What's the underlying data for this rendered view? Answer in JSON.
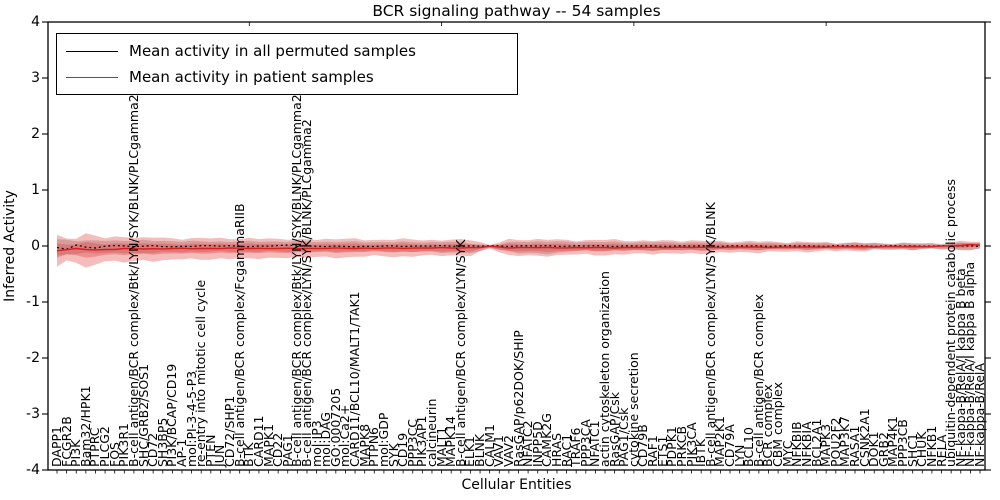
{
  "chart_data": {
    "type": "line",
    "title": "BCR signaling pathway -- 54 samples",
    "xlabel": "Cellular Entities",
    "ylabel": "Inferred Activity",
    "ylim": [
      -4,
      4
    ],
    "yticks": [
      "4",
      "3",
      "2",
      "1",
      "0",
      "-1",
      "-2",
      "-3",
      "-4"
    ],
    "n_samples": 54,
    "grid": false,
    "legend_position": "upper left",
    "categories": [
      "DAPP1",
      "FCGR2B",
      "PI3K",
      "Bam32/HPK1",
      "PTPRC",
      "PLCG2",
      "FOS",
      "PIK3R1",
      "B-cell antigen/BCR complex/Btk/LYN/SYK/BLNK/PLCgamma2",
      "SHC/GRB2/SOS1",
      "CD72",
      "SH3BP5",
      "PI3K/BCAP/CD19",
      "AP-1",
      "mol:PI-3-4-5-P3",
      "re-entry into mitotic cell cycle",
      "PTEN",
      "JUN",
      "CD72/SHP1",
      "B-cell antigen/BCR complex/FcgammaRIIB",
      "BTK",
      "CARD11",
      "MAPK1",
      "CD22",
      "PAG1",
      "B-cell antigen/BCR complex/Btk/LYN/SYK/BLNK/PLCgamma2",
      "B-cell antigen/BCR complex/LYN/SYK/BLNK/PLCgamma2",
      "mol:IP3",
      "mol:DAG",
      "GO:0007205",
      "mol:Ca2+",
      "CARD11/BCL10/MALT1/TAK1",
      "MAPK8",
      "PTPN6",
      "mol:GDP",
      "SYK",
      "CD19",
      "PPP3CC",
      "PIK3AP1",
      "calcineurin",
      "MALT1",
      "MAPK14",
      "B-cell antigen/BCR complex/LYN/SYK",
      "ELK1",
      "BLNK",
      "CALM1",
      "VAV1",
      "VAV2",
      "RasGAP/p62DOK/SHIP",
      "NFATC2",
      "INPP5D",
      "CAMK2G",
      "HRAS",
      "RAC1",
      "TRAF6",
      "PPP3CA",
      "NFATC1",
      "actin cytoskeleton organization",
      "RasGAP/Csk",
      "PAG1/Csk",
      "cytokine secretion",
      "CD79B",
      "RAF1",
      "ETS1",
      "PDPK1",
      "PRKCB",
      "PIK3CA",
      "IBTK",
      "B-cell antigen/BCR complex/LYN/SYK/BLNK",
      "MAP2K1",
      "CD79A",
      "LYN",
      "BCL10",
      "B-cell antigen/BCR complex",
      "BCR complex",
      "CBM complex",
      "MYC",
      "NFKBIB",
      "NFKBIA",
      "BCL2A1",
      "MAPK3",
      "POU2F2",
      "MAP3K7",
      "RASA1",
      "CSNK2A1",
      "DOK1",
      "GRB2",
      "MAP4K1",
      "PPP3CB",
      "SHC1",
      "CHUK",
      "NFKB1",
      "RELA",
      "ubiquitin-dependent protein catabolic process",
      "NF-kappa-B/RelA/I kappa B beta",
      "NF-kappa-B/RelA/I kappa B alpha",
      "NF-kappa-B/RelA"
    ],
    "series": [
      {
        "name": "Mean activity in all permuted samples",
        "color": "#000000",
        "style": "dashed",
        "points": [
          [
            0,
            -0.02
          ],
          [
            0.01,
            -0.06
          ],
          [
            0.02,
            0.01
          ],
          [
            0.04,
            -0.04
          ],
          [
            0.06,
            0.02
          ],
          [
            0.08,
            -0.02
          ],
          [
            0.1,
            0.01
          ],
          [
            0.13,
            -0.02
          ],
          [
            0.16,
            0.01
          ],
          [
            0.2,
            -0.01
          ],
          [
            0.25,
            0.01
          ],
          [
            0.3,
            -0.01
          ],
          [
            0.4,
            0.0
          ],
          [
            0.47,
            0.0
          ],
          [
            0.55,
            0.0
          ],
          [
            0.65,
            0.0
          ],
          [
            0.75,
            0.0
          ],
          [
            0.85,
            0.0
          ],
          [
            0.95,
            0.0
          ],
          [
            1,
            0.0
          ]
        ]
      },
      {
        "name": "Mean activity in patient samples",
        "color": "#d62020",
        "style": "solid",
        "points": [
          [
            0,
            -0.08
          ],
          [
            0.02,
            -0.05
          ],
          [
            0.04,
            -0.07
          ],
          [
            0.07,
            -0.05
          ],
          [
            0.1,
            -0.05
          ],
          [
            0.15,
            -0.045
          ],
          [
            0.2,
            -0.04
          ],
          [
            0.25,
            -0.045
          ],
          [
            0.3,
            -0.04
          ],
          [
            0.35,
            -0.04
          ],
          [
            0.4,
            -0.035
          ],
          [
            0.455,
            -0.03
          ],
          [
            0.47,
            -0.005
          ],
          [
            0.485,
            -0.03
          ],
          [
            0.55,
            -0.03
          ],
          [
            0.6,
            -0.03
          ],
          [
            0.65,
            -0.025
          ],
          [
            0.7,
            -0.025
          ],
          [
            0.75,
            -0.02
          ],
          [
            0.8,
            -0.02
          ],
          [
            0.85,
            -0.015
          ],
          [
            0.9,
            -0.012
          ],
          [
            0.95,
            -0.01
          ],
          [
            0.98,
            0.01
          ],
          [
            0.995,
            0.035
          ],
          [
            1,
            0.02
          ]
        ]
      }
    ],
    "bands": [
      {
        "name": "permuted-samples-std-band",
        "color": "#999999",
        "opacity": 0.45,
        "upper": [
          [
            0,
            0.12
          ],
          [
            0.03,
            0.09
          ],
          [
            0.08,
            0.1
          ],
          [
            0.15,
            0.08
          ],
          [
            0.25,
            0.08
          ],
          [
            0.35,
            0.07
          ],
          [
            0.44,
            0.07
          ],
          [
            0.468,
            0.01
          ],
          [
            0.5,
            0.08
          ],
          [
            0.6,
            0.07
          ],
          [
            0.7,
            0.06
          ],
          [
            0.8,
            0.05
          ],
          [
            0.9,
            0.05
          ],
          [
            1,
            0.05
          ]
        ],
        "lower": [
          [
            0,
            -0.18
          ],
          [
            0.03,
            -0.12
          ],
          [
            0.08,
            -0.13
          ],
          [
            0.15,
            -0.1
          ],
          [
            0.25,
            -0.1
          ],
          [
            0.35,
            -0.09
          ],
          [
            0.44,
            -0.12
          ],
          [
            0.455,
            -0.14
          ],
          [
            0.468,
            -0.02
          ],
          [
            0.5,
            -0.13
          ],
          [
            0.53,
            -0.14
          ],
          [
            0.56,
            -0.09
          ],
          [
            0.6,
            -0.08
          ],
          [
            0.7,
            -0.07
          ],
          [
            0.8,
            -0.06
          ],
          [
            0.9,
            -0.06
          ],
          [
            1,
            -0.06
          ]
        ]
      },
      {
        "name": "patient-samples-std-band",
        "color": "#e03030",
        "opacity": 0.32,
        "upper": [
          [
            0,
            0.2
          ],
          [
            0.015,
            0.1
          ],
          [
            0.03,
            0.22
          ],
          [
            0.05,
            0.14
          ],
          [
            0.07,
            0.18
          ],
          [
            0.09,
            0.13
          ],
          [
            0.11,
            0.16
          ],
          [
            0.14,
            0.12
          ],
          [
            0.17,
            0.15
          ],
          [
            0.2,
            0.12
          ],
          [
            0.23,
            0.14
          ],
          [
            0.26,
            0.11
          ],
          [
            0.3,
            0.13
          ],
          [
            0.34,
            0.11
          ],
          [
            0.38,
            0.12
          ],
          [
            0.42,
            0.1
          ],
          [
            0.45,
            0.12
          ],
          [
            0.468,
            0.015
          ],
          [
            0.49,
            0.11
          ],
          [
            0.52,
            0.12
          ],
          [
            0.56,
            0.1
          ],
          [
            0.6,
            0.11
          ],
          [
            0.64,
            0.09
          ],
          [
            0.68,
            0.1
          ],
          [
            0.72,
            0.08
          ],
          [
            0.76,
            0.08
          ],
          [
            0.8,
            0.07
          ],
          [
            0.84,
            0.06
          ],
          [
            0.88,
            0.05
          ],
          [
            0.92,
            0.04
          ],
          [
            0.96,
            0.04
          ],
          [
            0.985,
            0.09
          ],
          [
            1,
            0.07
          ]
        ],
        "lower": [
          [
            0,
            -0.38
          ],
          [
            0.015,
            -0.22
          ],
          [
            0.03,
            -0.4
          ],
          [
            0.05,
            -0.26
          ],
          [
            0.07,
            -0.3
          ],
          [
            0.09,
            -0.24
          ],
          [
            0.11,
            -0.28
          ],
          [
            0.14,
            -0.22
          ],
          [
            0.17,
            -0.25
          ],
          [
            0.2,
            -0.21
          ],
          [
            0.23,
            -0.23
          ],
          [
            0.26,
            -0.19
          ],
          [
            0.3,
            -0.21
          ],
          [
            0.34,
            -0.18
          ],
          [
            0.38,
            -0.19
          ],
          [
            0.42,
            -0.16
          ],
          [
            0.45,
            -0.18
          ],
          [
            0.468,
            -0.03
          ],
          [
            0.49,
            -0.17
          ],
          [
            0.52,
            -0.18
          ],
          [
            0.56,
            -0.15
          ],
          [
            0.6,
            -0.16
          ],
          [
            0.64,
            -0.13
          ],
          [
            0.68,
            -0.14
          ],
          [
            0.72,
            -0.12
          ],
          [
            0.76,
            -0.11
          ],
          [
            0.8,
            -0.1
          ],
          [
            0.84,
            -0.09
          ],
          [
            0.88,
            -0.08
          ],
          [
            0.92,
            -0.06
          ],
          [
            0.96,
            -0.05
          ],
          [
            0.985,
            -0.07
          ],
          [
            1,
            -0.06
          ]
        ]
      },
      {
        "name": "patient-samples-inner-band",
        "color": "#e03030",
        "opacity": 0.32,
        "scale_of": "patient-samples-std-band",
        "factor": 0.45
      }
    ]
  }
}
